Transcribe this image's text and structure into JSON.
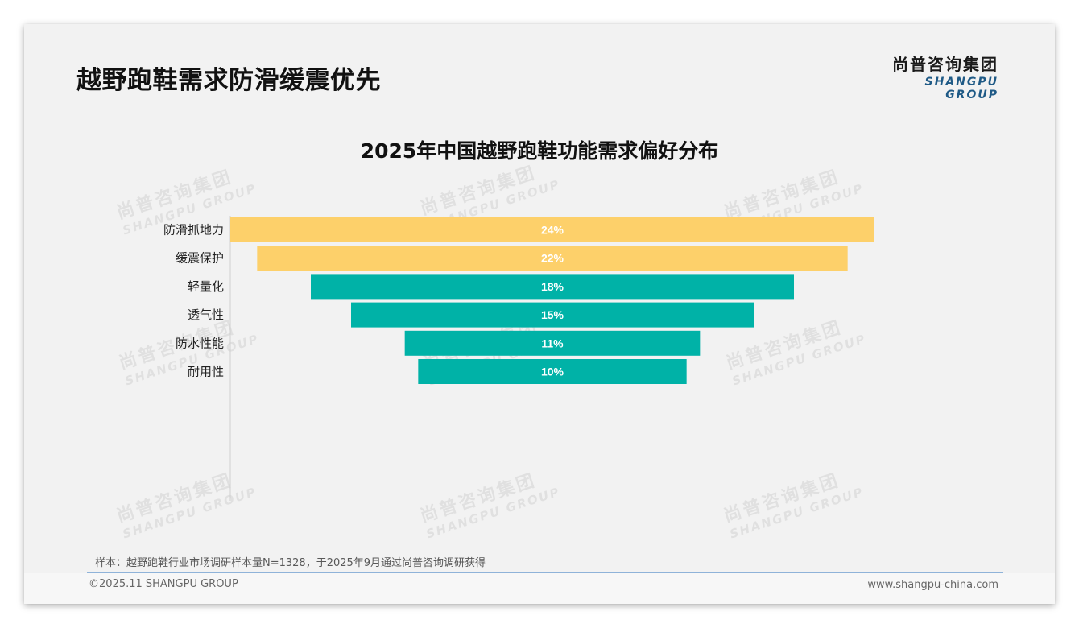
{
  "page": {
    "title": "越野跑鞋需求防滑缓震优先",
    "logo_cn": "尚普咨询集团",
    "logo_en": "SHANGPU GROUP",
    "watermark_cn": "尚普咨询集团",
    "watermark_en": "SHANGPU GROUP",
    "note": "样本：越野跑鞋行业市场调研样本量N=1328，于2025年9月通过尚普咨询调研获得",
    "copyright": "©2025.11 SHANGPU GROUP",
    "website": "www.shangpu-china.com"
  },
  "chart_data": {
    "type": "bar",
    "subtype": "funnel",
    "title": "2025年中国越野跑鞋功能需求偏好分布",
    "categories": [
      "防滑抓地力",
      "缓震保护",
      "轻量化",
      "透气性",
      "防水性能",
      "耐用性"
    ],
    "values": [
      24,
      22,
      18,
      15,
      11,
      10
    ],
    "labels": [
      "24%",
      "22%",
      "18%",
      "15%",
      "11%",
      "10%"
    ],
    "unit": "%",
    "colors": [
      "#fdd06a",
      "#fdd06a",
      "#00b2a7",
      "#00b2a7",
      "#00b2a7",
      "#00b2a7"
    ],
    "label_color": "#ffffff",
    "axis_color": "#d0d0d0",
    "legend": "none",
    "grid": false
  }
}
